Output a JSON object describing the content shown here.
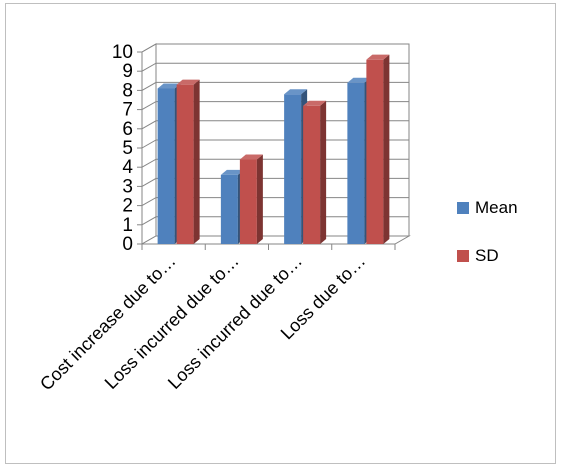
{
  "chart_data": {
    "type": "bar",
    "style": "3d-clustered-column",
    "categories": [
      "Cost increase due to…",
      "Loss incurred  due to…",
      "Loss incurred  due to…",
      "Loss due to…"
    ],
    "series": [
      {
        "name": "Mean",
        "color": "#4f81bd",
        "values": [
          8.1,
          3.6,
          7.8,
          8.4
        ]
      },
      {
        "name": "SD",
        "color": "#c0504d",
        "values": [
          8.3,
          4.4,
          7.2,
          9.6
        ]
      }
    ],
    "y_ticks": [
      "0",
      "1",
      "2",
      "3",
      "4",
      "5",
      "6",
      "7",
      "8",
      "9",
      "10"
    ],
    "ylim": [
      0,
      10
    ],
    "grid": true,
    "legend_position": "right"
  }
}
